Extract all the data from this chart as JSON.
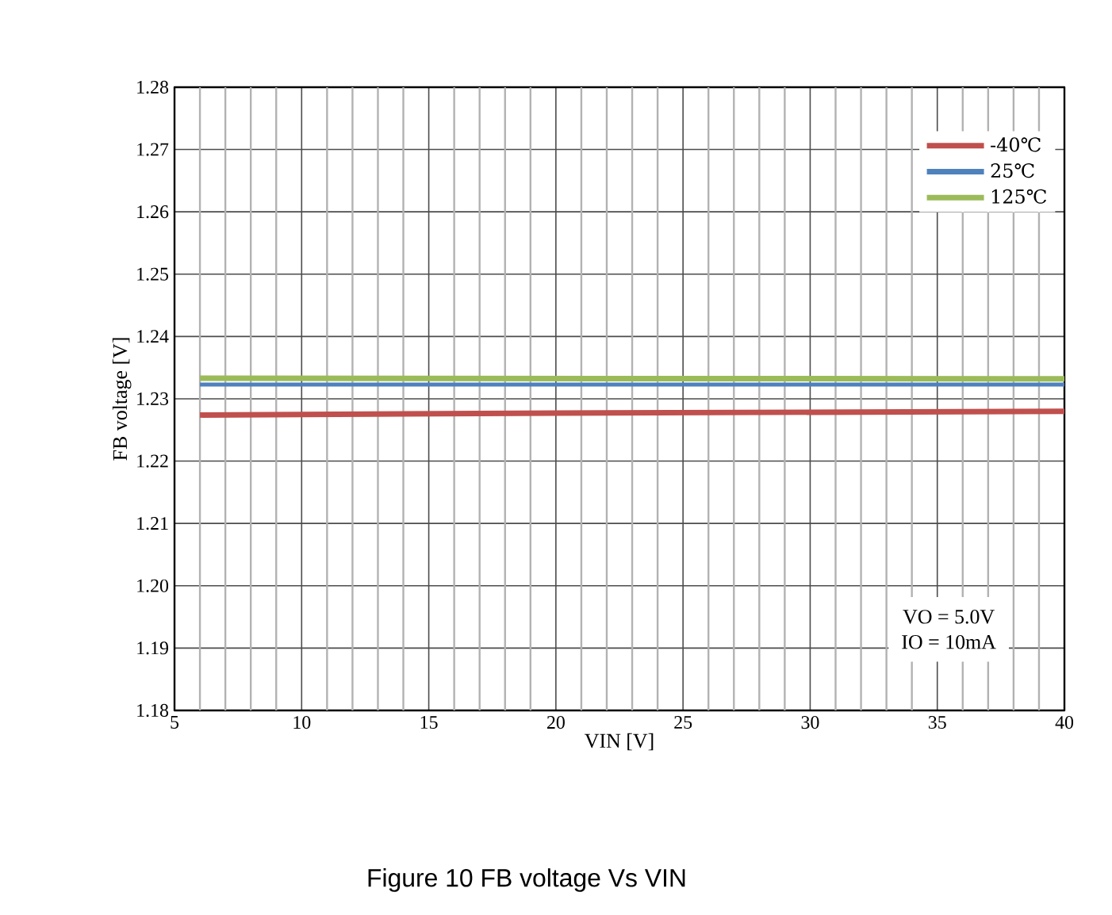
{
  "chart_data": {
    "type": "line",
    "title": "Figure 10 FB voltage Vs VIN",
    "xlabel": "VIN [V]",
    "ylabel": "FB voltage [V]",
    "xlim": [
      5,
      40
    ],
    "xticks": [
      5,
      {
        "value": 6,
        "label": null
      },
      {
        "value": 7,
        "label": null
      },
      {
        "value": 8,
        "label": null
      },
      {
        "value": 9,
        "label": null
      },
      10,
      {
        "value": 11,
        "label": null
      },
      {
        "value": 12,
        "label": null
      },
      {
        "value": 13,
        "label": null
      },
      {
        "value": 14,
        "label": null
      },
      15,
      {
        "value": 16,
        "label": null
      },
      {
        "value": 17,
        "label": null
      },
      {
        "value": 18,
        "label": null
      },
      {
        "value": 19,
        "label": null
      },
      20,
      {
        "value": 21,
        "label": null
      },
      {
        "value": 22,
        "label": null
      },
      {
        "value": 23,
        "label": null
      },
      {
        "value": 24,
        "label": null
      },
      25,
      {
        "value": 26,
        "label": null
      },
      {
        "value": 27,
        "label": null
      },
      {
        "value": 28,
        "label": null
      },
      {
        "value": 29,
        "label": null
      },
      30,
      {
        "value": 31,
        "label": null
      },
      {
        "value": 32,
        "label": null
      },
      {
        "value": 33,
        "label": null
      },
      {
        "value": 34,
        "label": null
      },
      35,
      {
        "value": 36,
        "label": null
      },
      {
        "value": 37,
        "label": null
      },
      {
        "value": 38,
        "label": null
      },
      {
        "value": 39,
        "label": null
      },
      40
    ],
    "ylim": [
      1.18,
      1.28
    ],
    "yticks": [
      1.18,
      1.19,
      {
        "value": 1.2,
        "label": "1.20"
      },
      1.21,
      1.22,
      1.23,
      1.24,
      1.25,
      1.26,
      1.27,
      1.28
    ],
    "grid": true,
    "legend": "top right",
    "marker": "none",
    "line_style": "solid",
    "annotations": [
      "VO = 5.0V",
      "IO = 10mA"
    ],
    "series": [
      {
        "name": "-40℃",
        "color": "#c0504d",
        "x": [
          6,
          20,
          40
        ],
        "values": [
          1.2274,
          1.2277,
          1.228
        ]
      },
      {
        "name": "25℃",
        "color": "#4f81bd",
        "x": [
          6,
          40
        ],
        "values": [
          1.2323,
          1.2323
        ]
      },
      {
        "name": "125℃",
        "color": "#9bbb59",
        "x": [
          6,
          40
        ],
        "values": [
          1.2333,
          1.2332
        ]
      }
    ]
  }
}
